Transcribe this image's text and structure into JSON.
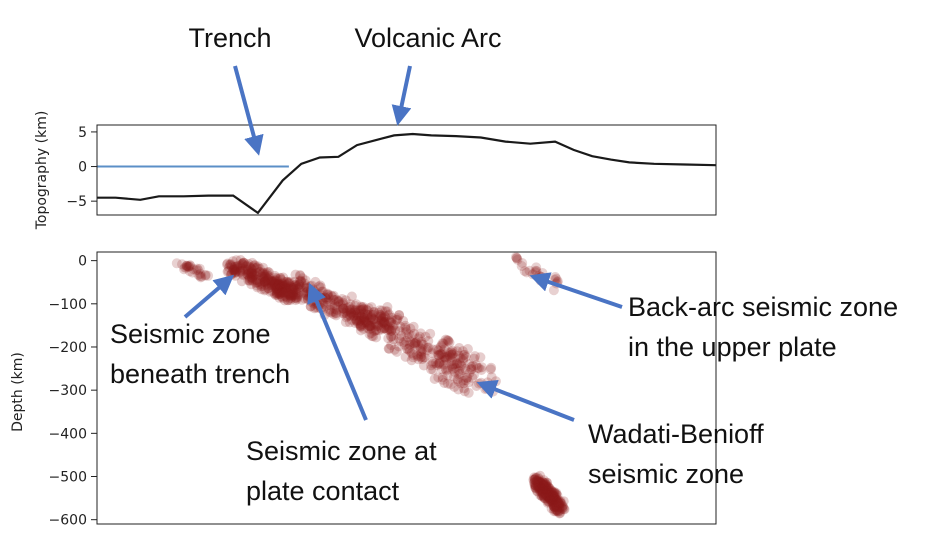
{
  "colors": {
    "topo_line": "#1a1a1a",
    "sea_level": "#5b8fc7",
    "quake": "#8b1a1a",
    "arrow": "#4a74c4"
  },
  "annotations": {
    "trench": "Trench",
    "volcanic_arc": "Volcanic Arc",
    "beneath_trench_1": "Seismic zone",
    "beneath_trench_2": "beneath trench",
    "plate_contact_1": "Seismic zone at",
    "plate_contact_2": "plate contact",
    "wadati_1": "Wadati-Benioff",
    "wadati_2": "seismic zone",
    "backarc_1": "Back-arc seismic zone",
    "backarc_2": "in the upper plate"
  },
  "chart_data": [
    {
      "type": "line",
      "ylabel": "Topography (km)",
      "xlabel": "",
      "ylim": [
        -7,
        6
      ],
      "xlim": [
        0,
        100
      ],
      "yticks": [
        5,
        0,
        -5
      ],
      "ytick_labels": [
        "5",
        "0",
        "−5"
      ],
      "grid": false,
      "series": [
        {
          "x": [
            0,
            3,
            7,
            10,
            14,
            18,
            22,
            26,
            30,
            33,
            36,
            39,
            42,
            45,
            48,
            51,
            54,
            58,
            62,
            66,
            70,
            74,
            77,
            80,
            83,
            86,
            90,
            95,
            100
          ],
          "y": [
            -4.5,
            -4.5,
            -4.8,
            -4.3,
            -4.3,
            -4.2,
            -4.2,
            -6.7,
            -2,
            0.4,
            1.3,
            1.4,
            3.1,
            3.8,
            4.5,
            4.7,
            4.5,
            4.4,
            4.2,
            3.6,
            3.3,
            3.6,
            2.4,
            1.5,
            1.0,
            0.6,
            0.4,
            0.3,
            0.2
          ]
        },
        {
          "x": [
            0,
            31
          ],
          "y": [
            0,
            0
          ]
        }
      ]
    },
    {
      "type": "scatter",
      "ylabel": "Depth (km)",
      "xlabel": "",
      "ylim": [
        -610,
        20
      ],
      "xlim": [
        0,
        100
      ],
      "yticks": [
        0,
        -100,
        -200,
        -300,
        -400,
        -500,
        -600
      ],
      "ytick_labels": [
        "0",
        "−100",
        "−200",
        "−300",
        "−400",
        "−500",
        "−600"
      ],
      "grid": false,
      "clusters": [
        {
          "x": [
            13,
            18
          ],
          "y": [
            -5,
            -40
          ],
          "density": "sparse"
        },
        {
          "x": [
            22,
            32
          ],
          "y": [
            -10,
            -80
          ],
          "density": "dense"
        },
        {
          "x": [
            30,
            46
          ],
          "y": [
            -50,
            -150
          ],
          "density": "dense"
        },
        {
          "x": [
            44,
            62
          ],
          "y": [
            -130,
            -280
          ],
          "density": "dense"
        },
        {
          "x": [
            67,
            76
          ],
          "y": [
            0,
            -60
          ],
          "density": "sparse"
        },
        {
          "x": [
            71,
            75
          ],
          "y": [
            -510,
            -575
          ],
          "density": "dense"
        }
      ]
    }
  ]
}
